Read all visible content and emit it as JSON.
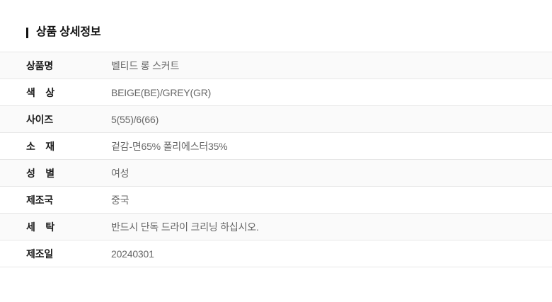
{
  "header": {
    "title": "상품 상세정보"
  },
  "table": {
    "rows": [
      {
        "label": "상품명",
        "value": "벨티드 롱 스커트"
      },
      {
        "label": "색 상",
        "value": "BEIGE(BE)/GREY(GR)"
      },
      {
        "label": "사이즈",
        "value": "5(55)/6(66)"
      },
      {
        "label": "소 재",
        "value": "겉감-면65% 폴리에스터35%"
      },
      {
        "label": "성 별",
        "value": "여성"
      },
      {
        "label": "제조국",
        "value": "중국"
      },
      {
        "label": "세 탁",
        "value": "반드시 단독 드라이 크리닝 하십시오."
      },
      {
        "label": "제조일",
        "value": "20240301"
      }
    ]
  },
  "colors": {
    "accent": "#111111",
    "row_alt_bg": "#fafafa",
    "border": "#e7e7e7",
    "label_text": "#1a1a1a",
    "value_text": "#666666"
  }
}
